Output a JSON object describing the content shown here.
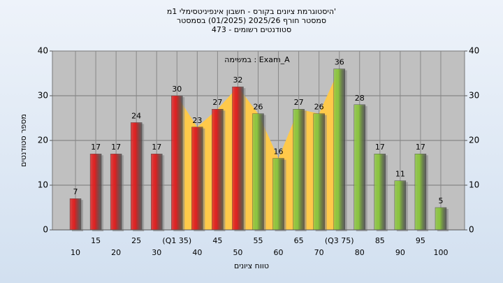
{
  "chart_data": {
    "type": "bar",
    "title": [
      "היסטוגרמת ציונים בקורס - חשבון אינפיניטסימלי 1מ'",
      "סמסטר חורף 2025/26 (01/2025) בסמסטר",
      "473 - סטודנטים רשומים"
    ],
    "annotation": "במשימה : Exam_A",
    "x_label": "טווח ציונים",
    "y_label": "מספר סטודנטים",
    "categories": [
      "10",
      "15",
      "20",
      "25",
      "30",
      "(Q1 35)",
      "40",
      "45",
      "50",
      "55",
      "60",
      "65",
      "70",
      "(Q3 75)",
      "80",
      "85",
      "90",
      "95",
      "100"
    ],
    "values": [
      7,
      17,
      17,
      24,
      17,
      30,
      23,
      27,
      32,
      26,
      16,
      27,
      26,
      36,
      28,
      17,
      11,
      17,
      5
    ],
    "colors": [
      "#e02020",
      "#e02020",
      "#e02020",
      "#e02020",
      "#e02020",
      "#e02020",
      "#e02020",
      "#e02020",
      "#e02020",
      "#8cc63f",
      "#8cc63f",
      "#8cc63f",
      "#8cc63f",
      "#8cc63f",
      "#8cc63f",
      "#8cc63f",
      "#8cc63f",
      "#8cc63f",
      "#8cc63f"
    ],
    "area_color": "#ffc94a",
    "ylim": [
      0,
      40
    ],
    "yticks": [
      0,
      10,
      20,
      30,
      40
    ],
    "y2lim": [
      0,
      40
    ],
    "y2ticks": [
      0,
      10,
      20,
      30,
      40
    ],
    "grid": true
  }
}
